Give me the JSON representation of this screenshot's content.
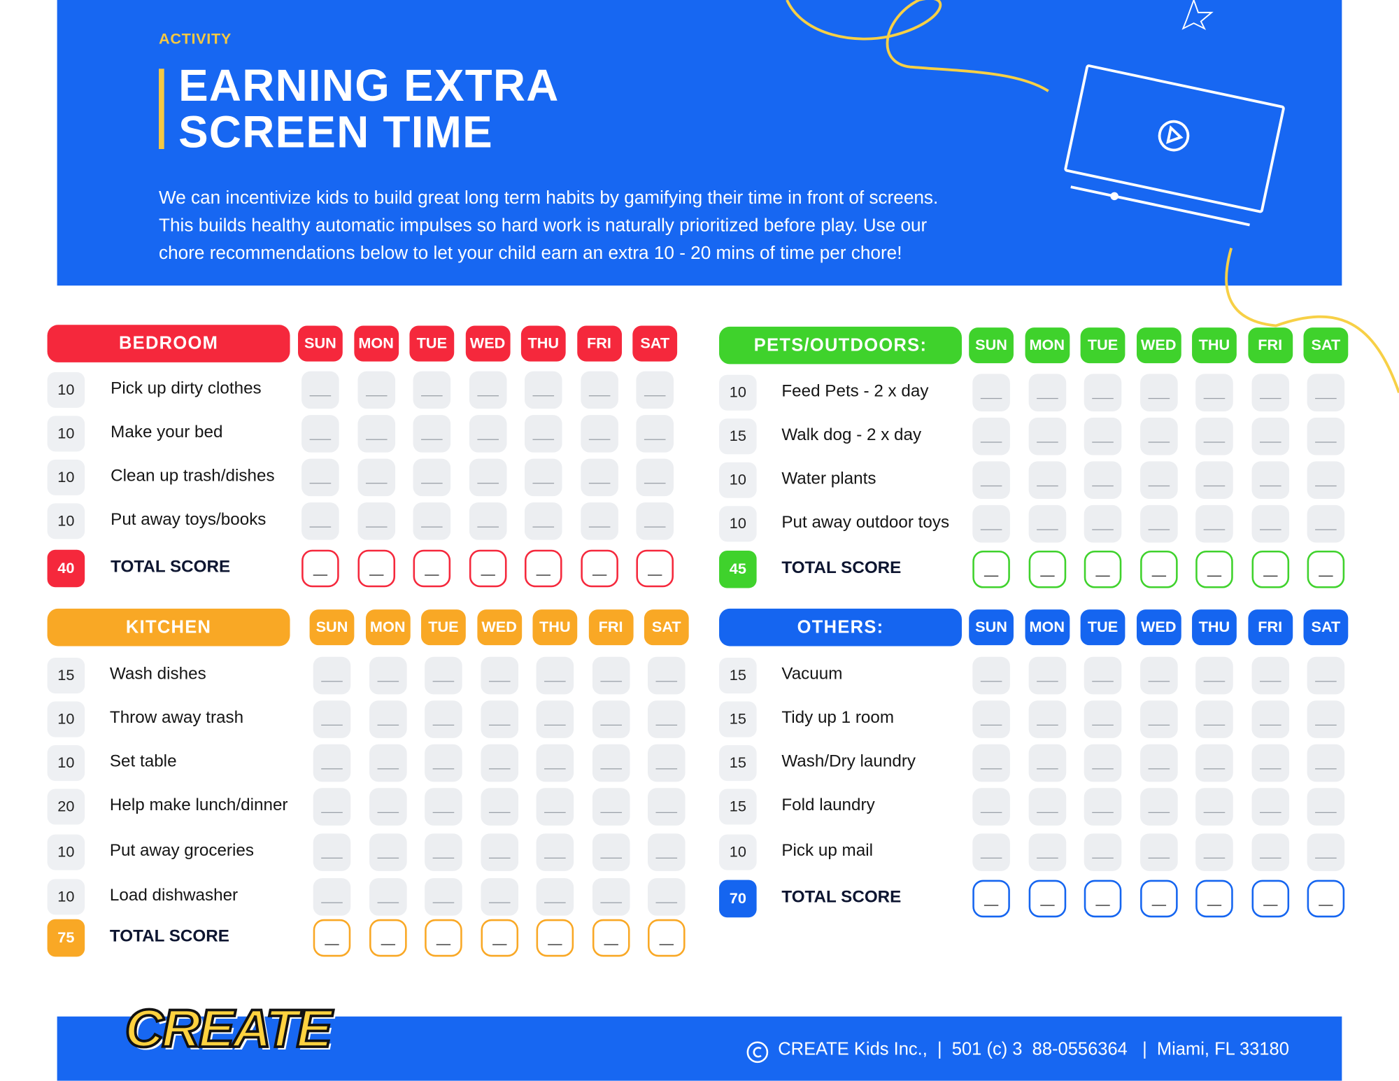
{
  "header": {
    "label": "ACTIVITY",
    "title_lines": [
      "EARNING EXTRA",
      "SCREEN TIME"
    ],
    "description": [
      "We can incentivize kids to build great long term habits by gamifying their time in front of screens.",
      "This builds healthy automatic impulses so hard work is naturally prioritized before play. Use our",
      "chore recommendations below to let your child earn an extra 10 - 20 mins of time per chore!"
    ]
  },
  "days": [
    "SUN",
    "MON",
    "TUE",
    "WED",
    "THU",
    "FRI",
    "SAT"
  ],
  "total_label": "TOTAL SCORE",
  "sections": [
    {
      "name": "BEDROOM",
      "color": "#f5283c",
      "tasks": [
        {
          "points": 10,
          "label": "Pick up dirty clothes"
        },
        {
          "points": 10,
          "label": "Make your bed"
        },
        {
          "points": 10,
          "label": "Clean up trash/dishes"
        },
        {
          "points": 10,
          "label": "Put away toys/books"
        }
      ],
      "total": 40
    },
    {
      "name": "PETS/OUTDOORS:",
      "color": "#3fd22c",
      "tasks": [
        {
          "points": 10,
          "label": "Feed Pets - 2 x day"
        },
        {
          "points": 15,
          "label": "Walk dog - 2 x day"
        },
        {
          "points": 10,
          "label": "Water plants"
        },
        {
          "points": 10,
          "label": "Put away outdoor toys"
        }
      ],
      "total": 45
    },
    {
      "name": "KITCHEN",
      "color": "#f9a825",
      "tasks": [
        {
          "points": 15,
          "label": "Wash dishes"
        },
        {
          "points": 10,
          "label": "Throw away trash"
        },
        {
          "points": 10,
          "label": "Set table"
        },
        {
          "points": 20,
          "label": "Help make lunch/dinner"
        },
        {
          "points": 10,
          "label": "Put away groceries"
        },
        {
          "points": 10,
          "label": "Load dishwasher"
        }
      ],
      "total": 75
    },
    {
      "name": "OTHERS:",
      "color": "#1565f0",
      "tasks": [
        {
          "points": 15,
          "label": "Vacuum"
        },
        {
          "points": 15,
          "label": "Tidy up 1 room"
        },
        {
          "points": 15,
          "label": "Wash/Dry laundry"
        },
        {
          "points": 15,
          "label": "Fold laundry"
        },
        {
          "points": 10,
          "label": "Pick up mail"
        }
      ],
      "total": 70
    }
  ],
  "footer": {
    "logo": "CREATE",
    "info": "CREATE Kids Inc.,  |  501 (c) 3  88-0556364   |  Miami, FL 33180"
  }
}
